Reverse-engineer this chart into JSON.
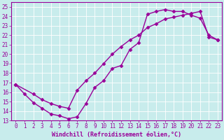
{
  "xlabel": "Windchill (Refroidissement éolien,°C)",
  "bg_color": "#c8ecec",
  "line_color": "#990099",
  "xlim": [
    -0.5,
    23.5
  ],
  "ylim": [
    13,
    25.5
  ],
  "xticks": [
    0,
    1,
    2,
    3,
    4,
    5,
    6,
    7,
    8,
    9,
    10,
    11,
    12,
    13,
    14,
    15,
    16,
    17,
    18,
    19,
    20,
    21,
    22,
    23
  ],
  "yticks": [
    13,
    14,
    15,
    16,
    17,
    18,
    19,
    20,
    21,
    22,
    23,
    24,
    25
  ],
  "curve1_x": [
    0,
    1,
    2,
    3,
    4,
    5,
    6,
    7,
    8,
    9,
    10,
    11,
    12,
    13,
    14,
    15,
    16,
    17,
    18,
    19,
    20,
    21,
    22,
    23
  ],
  "curve1_y": [
    16.8,
    15.8,
    14.9,
    14.3,
    13.7,
    13.5,
    13.2,
    13.4,
    14.8,
    16.5,
    17.2,
    18.5,
    18.8,
    20.5,
    21.2,
    24.2,
    24.5,
    24.7,
    24.5,
    24.5,
    24.1,
    23.8,
    22.0,
    21.5
  ],
  "curve2_x": [
    0,
    2,
    3,
    4,
    5,
    6,
    7,
    8,
    9,
    10,
    11,
    12,
    13,
    14,
    15,
    16,
    17,
    18,
    19,
    20,
    21,
    22,
    23
  ],
  "curve2_y": [
    16.8,
    15.8,
    15.2,
    14.8,
    14.5,
    14.3,
    16.2,
    17.2,
    18.0,
    19.0,
    20.0,
    20.8,
    21.5,
    22.0,
    22.8,
    23.2,
    23.7,
    23.9,
    24.1,
    24.3,
    24.5,
    21.8,
    21.5
  ],
  "marker": "D",
  "markersize": 2.5,
  "linewidth": 1.0,
  "tick_fontsize": 5.5,
  "xlabel_fontsize": 6.0
}
